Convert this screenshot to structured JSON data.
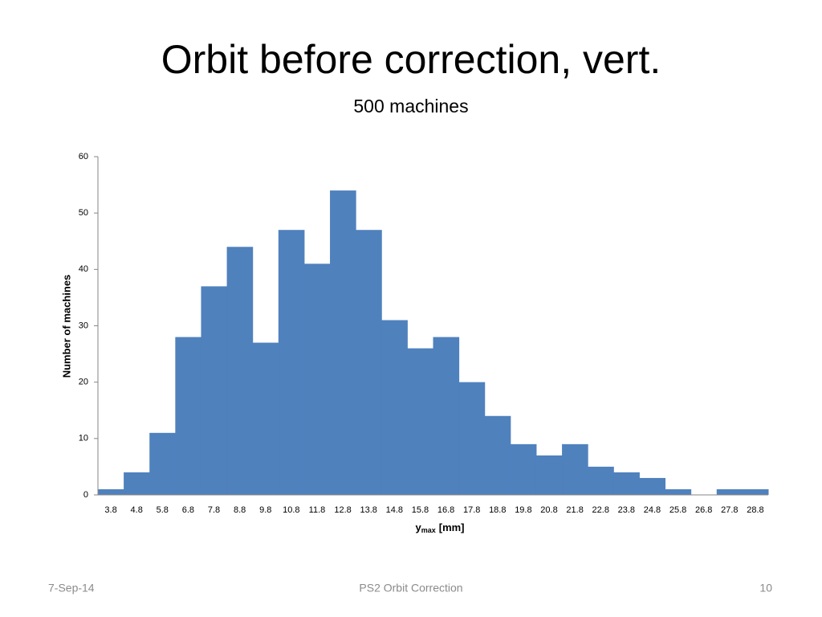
{
  "chart_data": {
    "type": "bar",
    "title": "Orbit before correction, vert.",
    "subtitle": "500 machines",
    "categories": [
      "3.8",
      "4.8",
      "5.8",
      "6.8",
      "7.8",
      "8.8",
      "9.8",
      "10.8",
      "11.8",
      "12.8",
      "13.8",
      "14.8",
      "15.8",
      "16.8",
      "17.8",
      "18.8",
      "19.8",
      "20.8",
      "21.8",
      "22.8",
      "23.8",
      "24.8",
      "25.8",
      "26.8",
      "27.8",
      "28.8"
    ],
    "values": [
      1,
      4,
      11,
      28,
      37,
      44,
      27,
      47,
      41,
      54,
      47,
      31,
      26,
      28,
      20,
      14,
      9,
      7,
      9,
      5,
      4,
      3,
      1,
      0,
      1,
      1
    ],
    "color": "#4f81bd",
    "y_label": "Number of machines",
    "x_label": {
      "main": "y",
      "sub": "max",
      "unit": "[mm]"
    },
    "ylim": [
      0,
      60
    ],
    "yticks": [
      0,
      10,
      20,
      30,
      40,
      50,
      60
    ],
    "grid": false
  },
  "footer": {
    "date": "7-Sep-14",
    "center": "PS2 Orbit Correction",
    "page": "10"
  }
}
